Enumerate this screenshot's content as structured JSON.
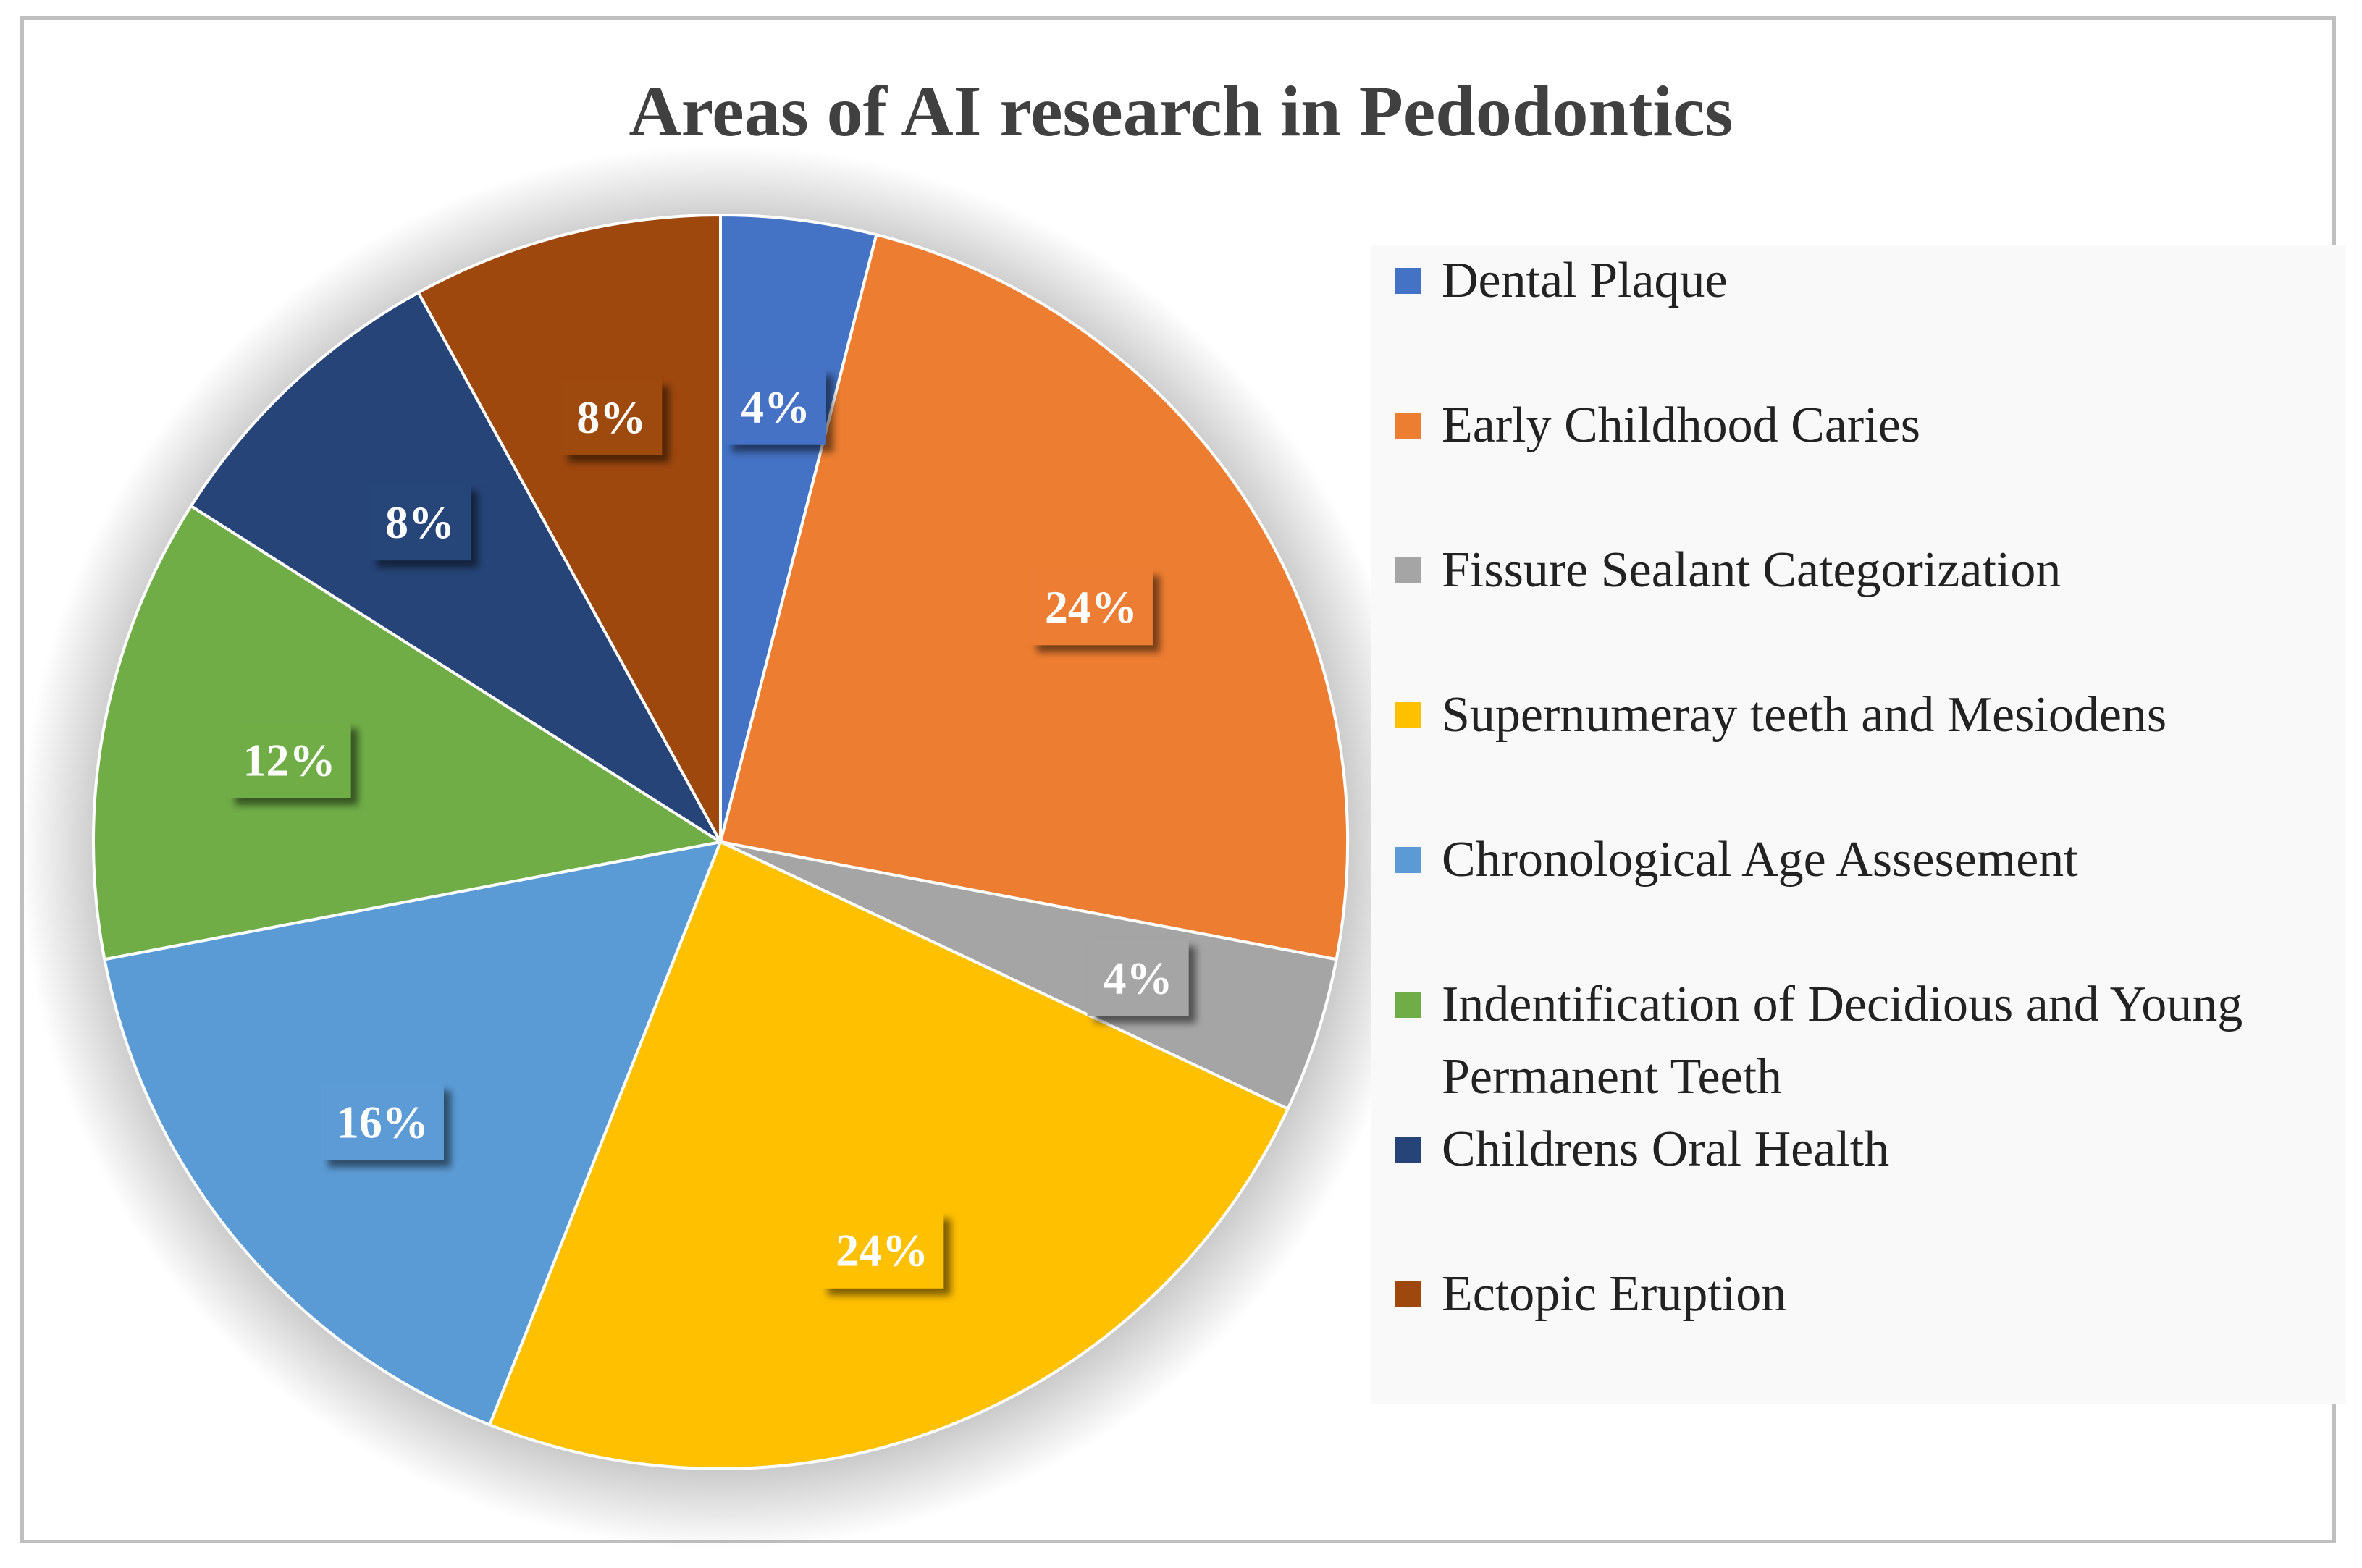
{
  "chart_data": {
    "type": "pie",
    "title": "Areas of AI research in Pedodontics",
    "legend_position": "right",
    "slices": [
      {
        "label": "Dental Plaque",
        "value": 4,
        "value_label": "4%",
        "color": "#4472C4"
      },
      {
        "label": "Early Childhood Caries",
        "value": 24,
        "value_label": "24%",
        "color": "#ED7D31"
      },
      {
        "label": "Fissure Sealant Categorization",
        "value": 4,
        "value_label": "4%",
        "color": "#A5A5A5"
      },
      {
        "label": "Supernumeray teeth and Mesiodens",
        "value": 24,
        "value_label": "24%",
        "color": "#FFC000"
      },
      {
        "label": "Chronological Age Assesement",
        "value": 16,
        "value_label": "16%",
        "color": "#5B9BD5"
      },
      {
        "label": "Indentification of Decidious and Young Permanent Teeth",
        "value": 12,
        "value_label": "12%",
        "color": "#70AD47"
      },
      {
        "label": "Childrens Oral Health",
        "value": 8,
        "value_label": "8%",
        "color": "#264478"
      },
      {
        "label": "Ectopic Eruption",
        "value": 8,
        "value_label": "8%",
        "color": "#9E480E"
      }
    ]
  }
}
